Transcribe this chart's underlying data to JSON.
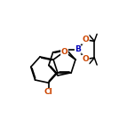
{
  "bg_color": "#ffffff",
  "bond_color": "#000000",
  "atom_colors": {
    "O": "#cc4400",
    "B": "#0000bb",
    "Cl": "#cc4400"
  },
  "bond_width": 1.2,
  "figsize": [
    1.52,
    1.52
  ],
  "dpi": 100
}
